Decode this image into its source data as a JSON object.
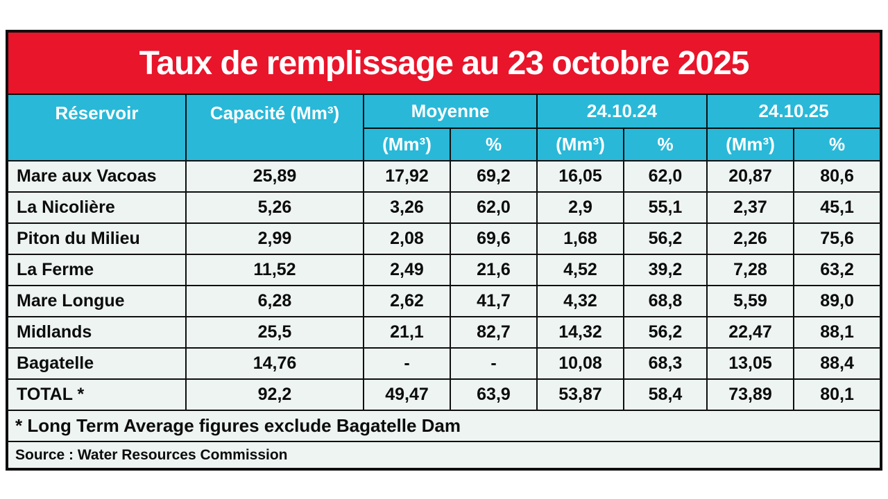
{
  "title": "Taux de remplissage au 23 octobre 2025",
  "colors": {
    "banner_red": "#e8152b",
    "header_cyan": "#29b8d8",
    "row_background": "#edf4f2",
    "border_black": "#0e0e0e"
  },
  "table": {
    "columns": {
      "reservoir": "Réservoir",
      "capacity": "Capacité (Mm³)",
      "groups": [
        {
          "label": "Moyenne"
        },
        {
          "label": "24.10.24"
        },
        {
          "label": "24.10.25"
        }
      ],
      "sub_volume": "(Mm³)",
      "sub_percent": "%"
    },
    "rows": [
      {
        "name": "Mare aux Vacoas",
        "capacity": "25,89",
        "values": [
          "17,92",
          "69,2",
          "16,05",
          "62,0",
          "20,87",
          "80,6"
        ]
      },
      {
        "name": "La Nicolière",
        "capacity": "5,26",
        "values": [
          "3,26",
          "62,0",
          "2,9",
          "55,1",
          "2,37",
          "45,1"
        ]
      },
      {
        "name": "Piton du Milieu",
        "capacity": "2,99",
        "values": [
          "2,08",
          "69,6",
          "1,68",
          "56,2",
          "2,26",
          "75,6"
        ]
      },
      {
        "name": "La Ferme",
        "capacity": "11,52",
        "values": [
          "2,49",
          "21,6",
          "4,52",
          "39,2",
          "7,28",
          "63,2"
        ]
      },
      {
        "name": "Mare Longue",
        "capacity": "6,28",
        "values": [
          "2,62",
          "41,7",
          "4,32",
          "68,8",
          "5,59",
          "89,0"
        ]
      },
      {
        "name": "Midlands",
        "capacity": "25,5",
        "values": [
          "21,1",
          "82,7",
          "14,32",
          "56,2",
          "22,47",
          "88,1"
        ]
      },
      {
        "name": "Bagatelle",
        "capacity": "14,76",
        "values": [
          "-",
          "-",
          "10,08",
          "68,3",
          "13,05",
          "88,4"
        ]
      },
      {
        "name": "TOTAL *",
        "capacity": "92,2",
        "values": [
          "49,47",
          "63,9",
          "53,87",
          "58,4",
          "73,89",
          "80,1"
        ]
      }
    ],
    "footnote": "* Long Term Average figures exclude Bagatelle Dam",
    "source": "Source : Water Resources Commission"
  },
  "chart_data": {
    "type": "table",
    "title": "Taux de remplissage au 23 octobre 2025",
    "columns": [
      "Réservoir",
      "Capacité (Mm³)",
      "Moyenne (Mm³)",
      "Moyenne %",
      "24.10.24 (Mm³)",
      "24.10.24 %",
      "24.10.25 (Mm³)",
      "24.10.25 %"
    ],
    "rows": [
      [
        "Mare aux Vacoas",
        "25,89",
        "17,92",
        "69,2",
        "16,05",
        "62,0",
        "20,87",
        "80,6"
      ],
      [
        "La Nicolière",
        "5,26",
        "3,26",
        "62,0",
        "2,9",
        "55,1",
        "2,37",
        "45,1"
      ],
      [
        "Piton du Milieu",
        "2,99",
        "2,08",
        "69,6",
        "1,68",
        "56,2",
        "2,26",
        "75,6"
      ],
      [
        "La Ferme",
        "11,52",
        "2,49",
        "21,6",
        "4,52",
        "39,2",
        "7,28",
        "63,2"
      ],
      [
        "Mare Longue",
        "6,28",
        "2,62",
        "41,7",
        "4,32",
        "68,8",
        "5,59",
        "89,0"
      ],
      [
        "Midlands",
        "25,5",
        "21,1",
        "82,7",
        "14,32",
        "56,2",
        "22,47",
        "88,1"
      ],
      [
        "Bagatelle",
        "14,76",
        "-",
        "-",
        "10,08",
        "68,3",
        "13,05",
        "88,4"
      ],
      [
        "TOTAL *",
        "92,2",
        "49,47",
        "63,9",
        "53,87",
        "58,4",
        "73,89",
        "80,1"
      ]
    ],
    "footnote": "* Long Term Average figures exclude Bagatelle Dam",
    "source": "Source : Water Resources Commission"
  }
}
